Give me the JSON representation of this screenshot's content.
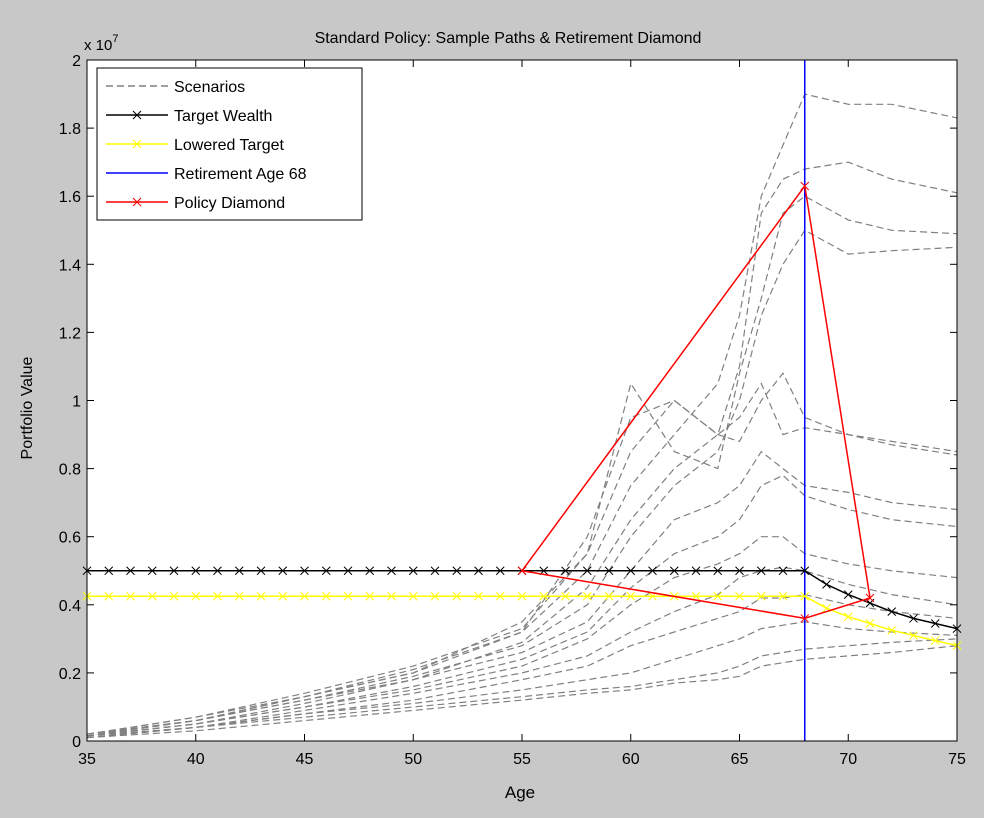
{
  "chart_data": {
    "type": "line",
    "title": "Standard Policy: Sample Paths & Retirement Diamond",
    "xlabel": "Age",
    "ylabel": "Portfolio Value",
    "y_multiplier_label": "x 10",
    "y_multiplier_exponent": "7",
    "y_multiplier_value": 10000000,
    "xlim": [
      35,
      75
    ],
    "ylim": [
      0,
      20000000
    ],
    "x_ticks": [
      35,
      40,
      45,
      50,
      55,
      60,
      65,
      70,
      75
    ],
    "x_tick_labels": [
      "35",
      "40",
      "45",
      "50",
      "55",
      "60",
      "65",
      "70",
      "75"
    ],
    "y_ticks": [
      0,
      2000000,
      4000000,
      6000000,
      8000000,
      10000000,
      12000000,
      14000000,
      16000000,
      18000000,
      20000000
    ],
    "y_tick_labels": [
      "0",
      "0.2",
      "0.4",
      "0.6",
      "0.8",
      "1",
      "1.2",
      "1.4",
      "1.6",
      "1.8",
      "2"
    ],
    "grid": false,
    "legend_position": "top-left",
    "legend": [
      {
        "label": "Scenarios",
        "color": "#808080",
        "style": "dashed",
        "marker": "none"
      },
      {
        "label": "Target Wealth",
        "color": "#000000",
        "style": "solid",
        "marker": "x"
      },
      {
        "label": "Lowered Target",
        "color": "#ffff00",
        "style": "solid",
        "marker": "x"
      },
      {
        "label": "Retirement Age 68",
        "color": "#0000ff",
        "style": "solid",
        "marker": "none"
      },
      {
        "label": "Policy Diamond",
        "color": "#ff0000",
        "style": "solid",
        "marker": "x"
      }
    ],
    "target_wealth": {
      "x": [
        35,
        36,
        37,
        38,
        39,
        40,
        41,
        42,
        43,
        44,
        45,
        46,
        47,
        48,
        49,
        50,
        51,
        52,
        53,
        54,
        55,
        56,
        57,
        58,
        59,
        60,
        61,
        62,
        63,
        64,
        65,
        66,
        67,
        68,
        69,
        70,
        71,
        72,
        73,
        74,
        75
      ],
      "y": [
        5000000,
        5000000,
        5000000,
        5000000,
        5000000,
        5000000,
        5000000,
        5000000,
        5000000,
        5000000,
        5000000,
        5000000,
        5000000,
        5000000,
        5000000,
        5000000,
        5000000,
        5000000,
        5000000,
        5000000,
        5000000,
        5000000,
        5000000,
        5000000,
        5000000,
        5000000,
        5000000,
        5000000,
        5000000,
        5000000,
        5000000,
        5000000,
        5000000,
        5000000,
        4600000,
        4300000,
        4050000,
        3800000,
        3600000,
        3450000,
        3300000
      ]
    },
    "lowered_target": {
      "x": [
        35,
        36,
        37,
        38,
        39,
        40,
        41,
        42,
        43,
        44,
        45,
        46,
        47,
        48,
        49,
        50,
        51,
        52,
        53,
        54,
        55,
        56,
        57,
        58,
        59,
        60,
        61,
        62,
        63,
        64,
        65,
        66,
        67,
        68,
        69,
        70,
        71,
        72,
        73,
        74,
        75
      ],
      "y": [
        4250000,
        4250000,
        4250000,
        4250000,
        4250000,
        4250000,
        4250000,
        4250000,
        4250000,
        4250000,
        4250000,
        4250000,
        4250000,
        4250000,
        4250000,
        4250000,
        4250000,
        4250000,
        4250000,
        4250000,
        4250000,
        4250000,
        4250000,
        4250000,
        4250000,
        4250000,
        4250000,
        4250000,
        4250000,
        4250000,
        4250000,
        4250000,
        4250000,
        4250000,
        3900000,
        3650000,
        3450000,
        3250000,
        3100000,
        2950000,
        2800000
      ]
    },
    "retirement_age": 68,
    "policy_diamond": {
      "x": [
        55,
        68,
        71,
        68,
        55
      ],
      "y": [
        5000000,
        16300000,
        4200000,
        3600000,
        5000000
      ]
    },
    "scenarios": [
      {
        "x": [
          35,
          40,
          45,
          50,
          55,
          58,
          60,
          62,
          64,
          65,
          66,
          67,
          68,
          70,
          72,
          75
        ],
        "y": [
          200000,
          600000,
          1300000,
          2000000,
          3200000,
          5000000,
          7500000,
          9000000,
          10500000,
          12500000,
          16000000,
          17500000,
          19000000,
          18700000,
          18700000,
          18300000
        ]
      },
      {
        "x": [
          35,
          40,
          45,
          50,
          55,
          58,
          60,
          62,
          64,
          65,
          66,
          67,
          68,
          70,
          72,
          75
        ],
        "y": [
          150000,
          600000,
          1200000,
          1800000,
          2900000,
          4500000,
          6500000,
          8000000,
          9000000,
          11000000,
          15500000,
          16500000,
          16800000,
          17000000,
          16500000,
          16100000
        ]
      },
      {
        "x": [
          35,
          40,
          45,
          50,
          55,
          58,
          60,
          62,
          64,
          65,
          66,
          67,
          68,
          70,
          72,
          75
        ],
        "y": [
          200000,
          700000,
          1400000,
          2200000,
          3300000,
          5500000,
          10500000,
          8500000,
          8000000,
          10800000,
          13000000,
          15500000,
          16000000,
          15300000,
          15000000,
          14900000
        ]
      },
      {
        "x": [
          35,
          40,
          45,
          50,
          55,
          58,
          60,
          62,
          64,
          65,
          66,
          67,
          68,
          70,
          72,
          75
        ],
        "y": [
          200000,
          600000,
          1200000,
          1900000,
          2800000,
          4000000,
          6000000,
          7500000,
          8500000,
          10000000,
          12500000,
          14000000,
          15000000,
          14300000,
          14400000,
          14500000
        ]
      },
      {
        "x": [
          35,
          40,
          45,
          50,
          55,
          58,
          60,
          62,
          64,
          65,
          66,
          67,
          68,
          70,
          72,
          75
        ],
        "y": [
          150000,
          600000,
          1300000,
          2100000,
          3200000,
          6000000,
          9500000,
          10000000,
          9000000,
          8800000,
          10000000,
          10800000,
          9500000,
          9000000,
          8700000,
          8400000
        ]
      },
      {
        "x": [
          35,
          40,
          45,
          50,
          55,
          58,
          60,
          62,
          64,
          65,
          66,
          67,
          68,
          70,
          72,
          75
        ],
        "y": [
          200000,
          700000,
          1300000,
          2000000,
          3500000,
          5500000,
          8500000,
          10000000,
          9000000,
          9500000,
          10500000,
          9000000,
          9200000,
          9000000,
          8800000,
          8500000
        ]
      },
      {
        "x": [
          35,
          40,
          45,
          50,
          55,
          58,
          60,
          62,
          64,
          65,
          66,
          67,
          68,
          70,
          72,
          75
        ],
        "y": [
          150000,
          500000,
          1100000,
          1800000,
          2600000,
          3500000,
          5000000,
          6500000,
          7000000,
          7500000,
          8500000,
          8000000,
          7500000,
          7300000,
          7000000,
          6800000
        ]
      },
      {
        "x": [
          35,
          40,
          45,
          50,
          55,
          58,
          60,
          62,
          64,
          65,
          66,
          67,
          68,
          70,
          72,
          75
        ],
        "y": [
          150000,
          500000,
          1000000,
          1600000,
          2400000,
          3200000,
          4500000,
          5500000,
          6000000,
          6500000,
          7500000,
          7800000,
          7200000,
          6800000,
          6500000,
          6300000
        ]
      },
      {
        "x": [
          35,
          40,
          45,
          50,
          55,
          58,
          60,
          62,
          64,
          65,
          66,
          67,
          68,
          70,
          72,
          75
        ],
        "y": [
          150000,
          500000,
          1000000,
          1500000,
          2200000,
          3000000,
          4000000,
          4800000,
          5200000,
          5500000,
          6000000,
          6000000,
          5500000,
          5200000,
          5000000,
          4800000
        ]
      },
      {
        "x": [
          35,
          40,
          45,
          50,
          55,
          58,
          60,
          62,
          64,
          65,
          66,
          67,
          68,
          70,
          72,
          75
        ],
        "y": [
          150000,
          400000,
          900000,
          1400000,
          2000000,
          2500000,
          3200000,
          3800000,
          4300000,
          4800000,
          5000000,
          5100000,
          5000000,
          4600000,
          4300000,
          4000000
        ]
      },
      {
        "x": [
          35,
          40,
          45,
          50,
          55,
          58,
          60,
          62,
          64,
          65,
          66,
          67,
          68,
          70,
          72,
          75
        ],
        "y": [
          100000,
          400000,
          800000,
          1200000,
          1800000,
          2200000,
          2800000,
          3200000,
          3600000,
          3800000,
          4200000,
          4200000,
          4300000,
          4000000,
          3800000,
          3600000
        ]
      },
      {
        "x": [
          35,
          40,
          45,
          50,
          55,
          58,
          60,
          62,
          64,
          65,
          66,
          67,
          68,
          70,
          72,
          75
        ],
        "y": [
          100000,
          400000,
          800000,
          1100000,
          1500000,
          1800000,
          2000000,
          2400000,
          2800000,
          3000000,
          3300000,
          3400000,
          3500000,
          3300000,
          3200000,
          3100000
        ]
      },
      {
        "x": [
          35,
          40,
          45,
          50,
          55,
          58,
          60,
          62,
          64,
          65,
          66,
          67,
          68,
          70,
          72,
          75
        ],
        "y": [
          100000,
          400000,
          700000,
          1000000,
          1300000,
          1500000,
          1600000,
          1800000,
          2000000,
          2200000,
          2500000,
          2600000,
          2700000,
          2800000,
          2900000,
          3000000
        ]
      },
      {
        "x": [
          35,
          40,
          45,
          50,
          55,
          58,
          60,
          62,
          64,
          65,
          66,
          67,
          68,
          70,
          72,
          75
        ],
        "y": [
          100000,
          300000,
          600000,
          900000,
          1200000,
          1400000,
          1500000,
          1700000,
          1800000,
          1900000,
          2200000,
          2300000,
          2400000,
          2500000,
          2600000,
          2800000
        ]
      }
    ]
  }
}
